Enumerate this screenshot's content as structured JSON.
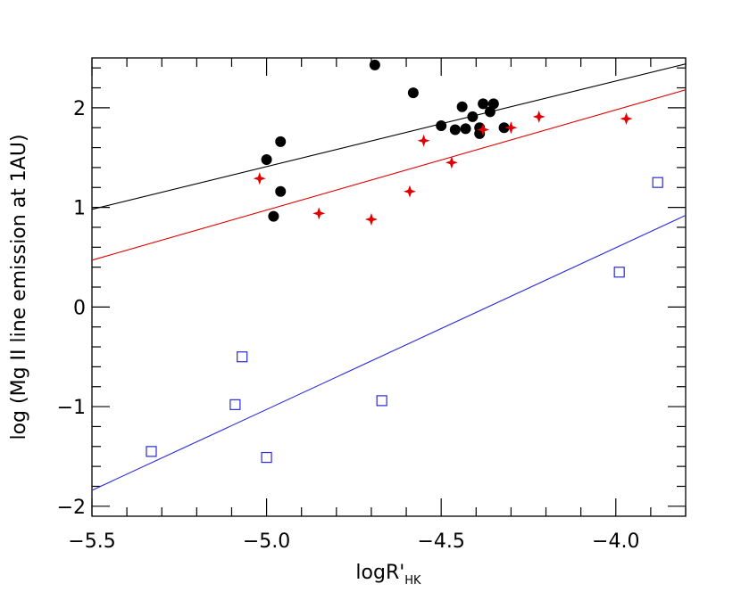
{
  "chart_data": {
    "type": "scatter",
    "title": "",
    "xlabel_main": "logR'",
    "xlabel_sub": "HK",
    "ylabel": "log (Mg II line emission at 1AU)",
    "xlim": [
      -5.5,
      -3.8
    ],
    "ylim": [
      -2.1,
      2.5
    ],
    "xticks": [
      -5.5,
      -5.0,
      -4.5,
      -4.0
    ],
    "xtick_labels": [
      "−5.5",
      "−5.0",
      "−4.5",
      "−4.0"
    ],
    "yticks": [
      -2,
      -1,
      0,
      1,
      2
    ],
    "ytick_labels": [
      "−2",
      "−1",
      "0",
      "1",
      "2"
    ],
    "x_minor_step": 0.1,
    "y_minor_step": 0.2,
    "grid": false,
    "colors": {
      "black": "#000000",
      "red": "#e00000",
      "blue": "#2a2ad8"
    },
    "series": [
      {
        "marker": "filled-circle",
        "color": "#000000",
        "points": [
          [
            -5.0,
            1.48
          ],
          [
            -4.96,
            1.66
          ],
          [
            -4.96,
            1.16
          ],
          [
            -4.98,
            0.91
          ],
          [
            -4.69,
            2.43
          ],
          [
            -4.58,
            2.15
          ],
          [
            -4.5,
            1.82
          ],
          [
            -4.46,
            1.78
          ],
          [
            -4.43,
            1.79
          ],
          [
            -4.44,
            2.01
          ],
          [
            -4.41,
            1.91
          ],
          [
            -4.38,
            2.04
          ],
          [
            -4.35,
            2.04
          ],
          [
            -4.36,
            1.96
          ],
          [
            -4.39,
            1.8
          ],
          [
            -4.39,
            1.74
          ],
          [
            -4.32,
            1.8
          ]
        ],
        "fit": [
          [
            -5.5,
            0.98
          ],
          [
            -3.8,
            2.44
          ]
        ]
      },
      {
        "marker": "star",
        "color": "#e00000",
        "points": [
          [
            -5.02,
            1.29
          ],
          [
            -4.85,
            0.94
          ],
          [
            -4.7,
            0.88
          ],
          [
            -4.59,
            1.16
          ],
          [
            -4.55,
            1.67
          ],
          [
            -4.47,
            1.45
          ],
          [
            -4.38,
            1.78
          ],
          [
            -4.3,
            1.8
          ],
          [
            -4.22,
            1.91
          ],
          [
            -3.97,
            1.89
          ]
        ],
        "fit": [
          [
            -5.5,
            0.47
          ],
          [
            -3.8,
            2.18
          ]
        ]
      },
      {
        "marker": "open-square",
        "color": "#2a2ad8",
        "points": [
          [
            -5.33,
            -1.45
          ],
          [
            -5.07,
            -0.5
          ],
          [
            -5.09,
            -0.98
          ],
          [
            -5.0,
            -1.51
          ],
          [
            -4.67,
            -0.94
          ],
          [
            -3.99,
            0.35
          ],
          [
            -3.88,
            1.25
          ]
        ],
        "fit": [
          [
            -5.5,
            -1.84
          ],
          [
            -3.8,
            0.92
          ]
        ]
      }
    ]
  }
}
